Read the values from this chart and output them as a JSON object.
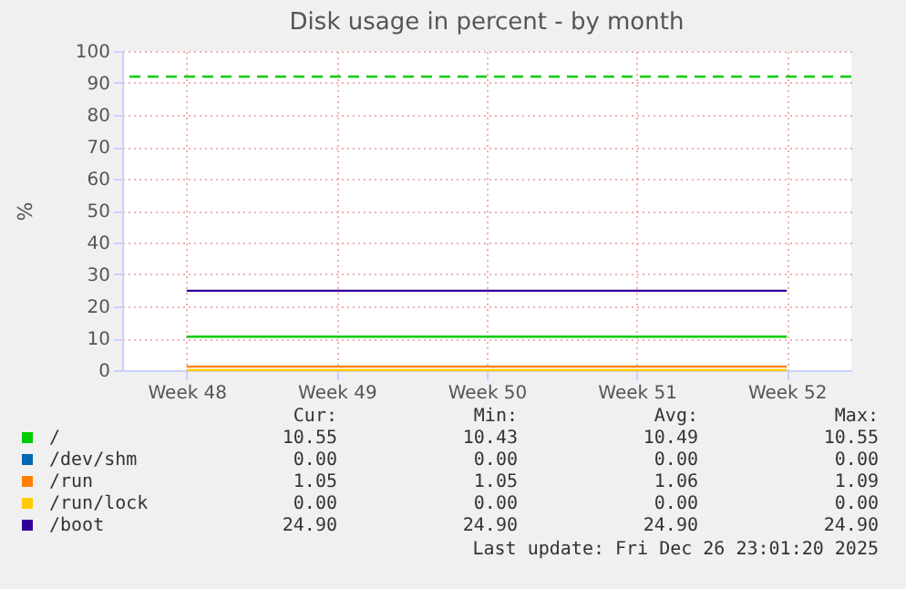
{
  "chart_data": {
    "type": "line",
    "title": "Disk usage in percent - by month",
    "ylabel": "%",
    "categories": [
      "Week 48",
      "Week 49",
      "Week 50",
      "Week 51",
      "Week 52"
    ],
    "ylim": [
      0,
      100
    ],
    "yticks": [
      0,
      10,
      20,
      30,
      40,
      50,
      60,
      70,
      80,
      90,
      100
    ],
    "series": [
      {
        "name": "/",
        "color": "#00cc00",
        "values": [
          10.5,
          10.5,
          10.5,
          10.5,
          10.5
        ]
      },
      {
        "name": "/dev/shm",
        "color": "#0066b3",
        "values": [
          null,
          null,
          null,
          null,
          null
        ]
      },
      {
        "name": "/run",
        "color": "#ff8000",
        "values": [
          1.1,
          1.1,
          1.1,
          1.1,
          1.1
        ]
      },
      {
        "name": "/run/lock",
        "color": "#ffcc00",
        "values": [
          0,
          0,
          0,
          0,
          0
        ]
      },
      {
        "name": "/boot",
        "color": "#330099",
        "values": [
          24.9,
          24.9,
          24.9,
          24.9,
          24.9
        ]
      }
    ],
    "ref_lines": [
      {
        "axis": "y",
        "value": 92,
        "color": "#00cc00",
        "line_style": "dashed"
      }
    ],
    "grid": true,
    "legend": "bottom",
    "annotations": [
      "Cur:",
      "Min:",
      "Avg:",
      "Max:",
      "10.55",
      "10.43",
      "10.49",
      "10.55",
      "0.00",
      "0.00",
      "0.00",
      "0.00",
      "1.05",
      "1.05",
      "1.06",
      "1.09",
      "0.00",
      "0.00",
      "0.00",
      "0.00",
      "24.90",
      "24.90",
      "24.90",
      "24.90",
      "Last update: Fri Dec 26 23:01:20 2025"
    ]
  }
}
